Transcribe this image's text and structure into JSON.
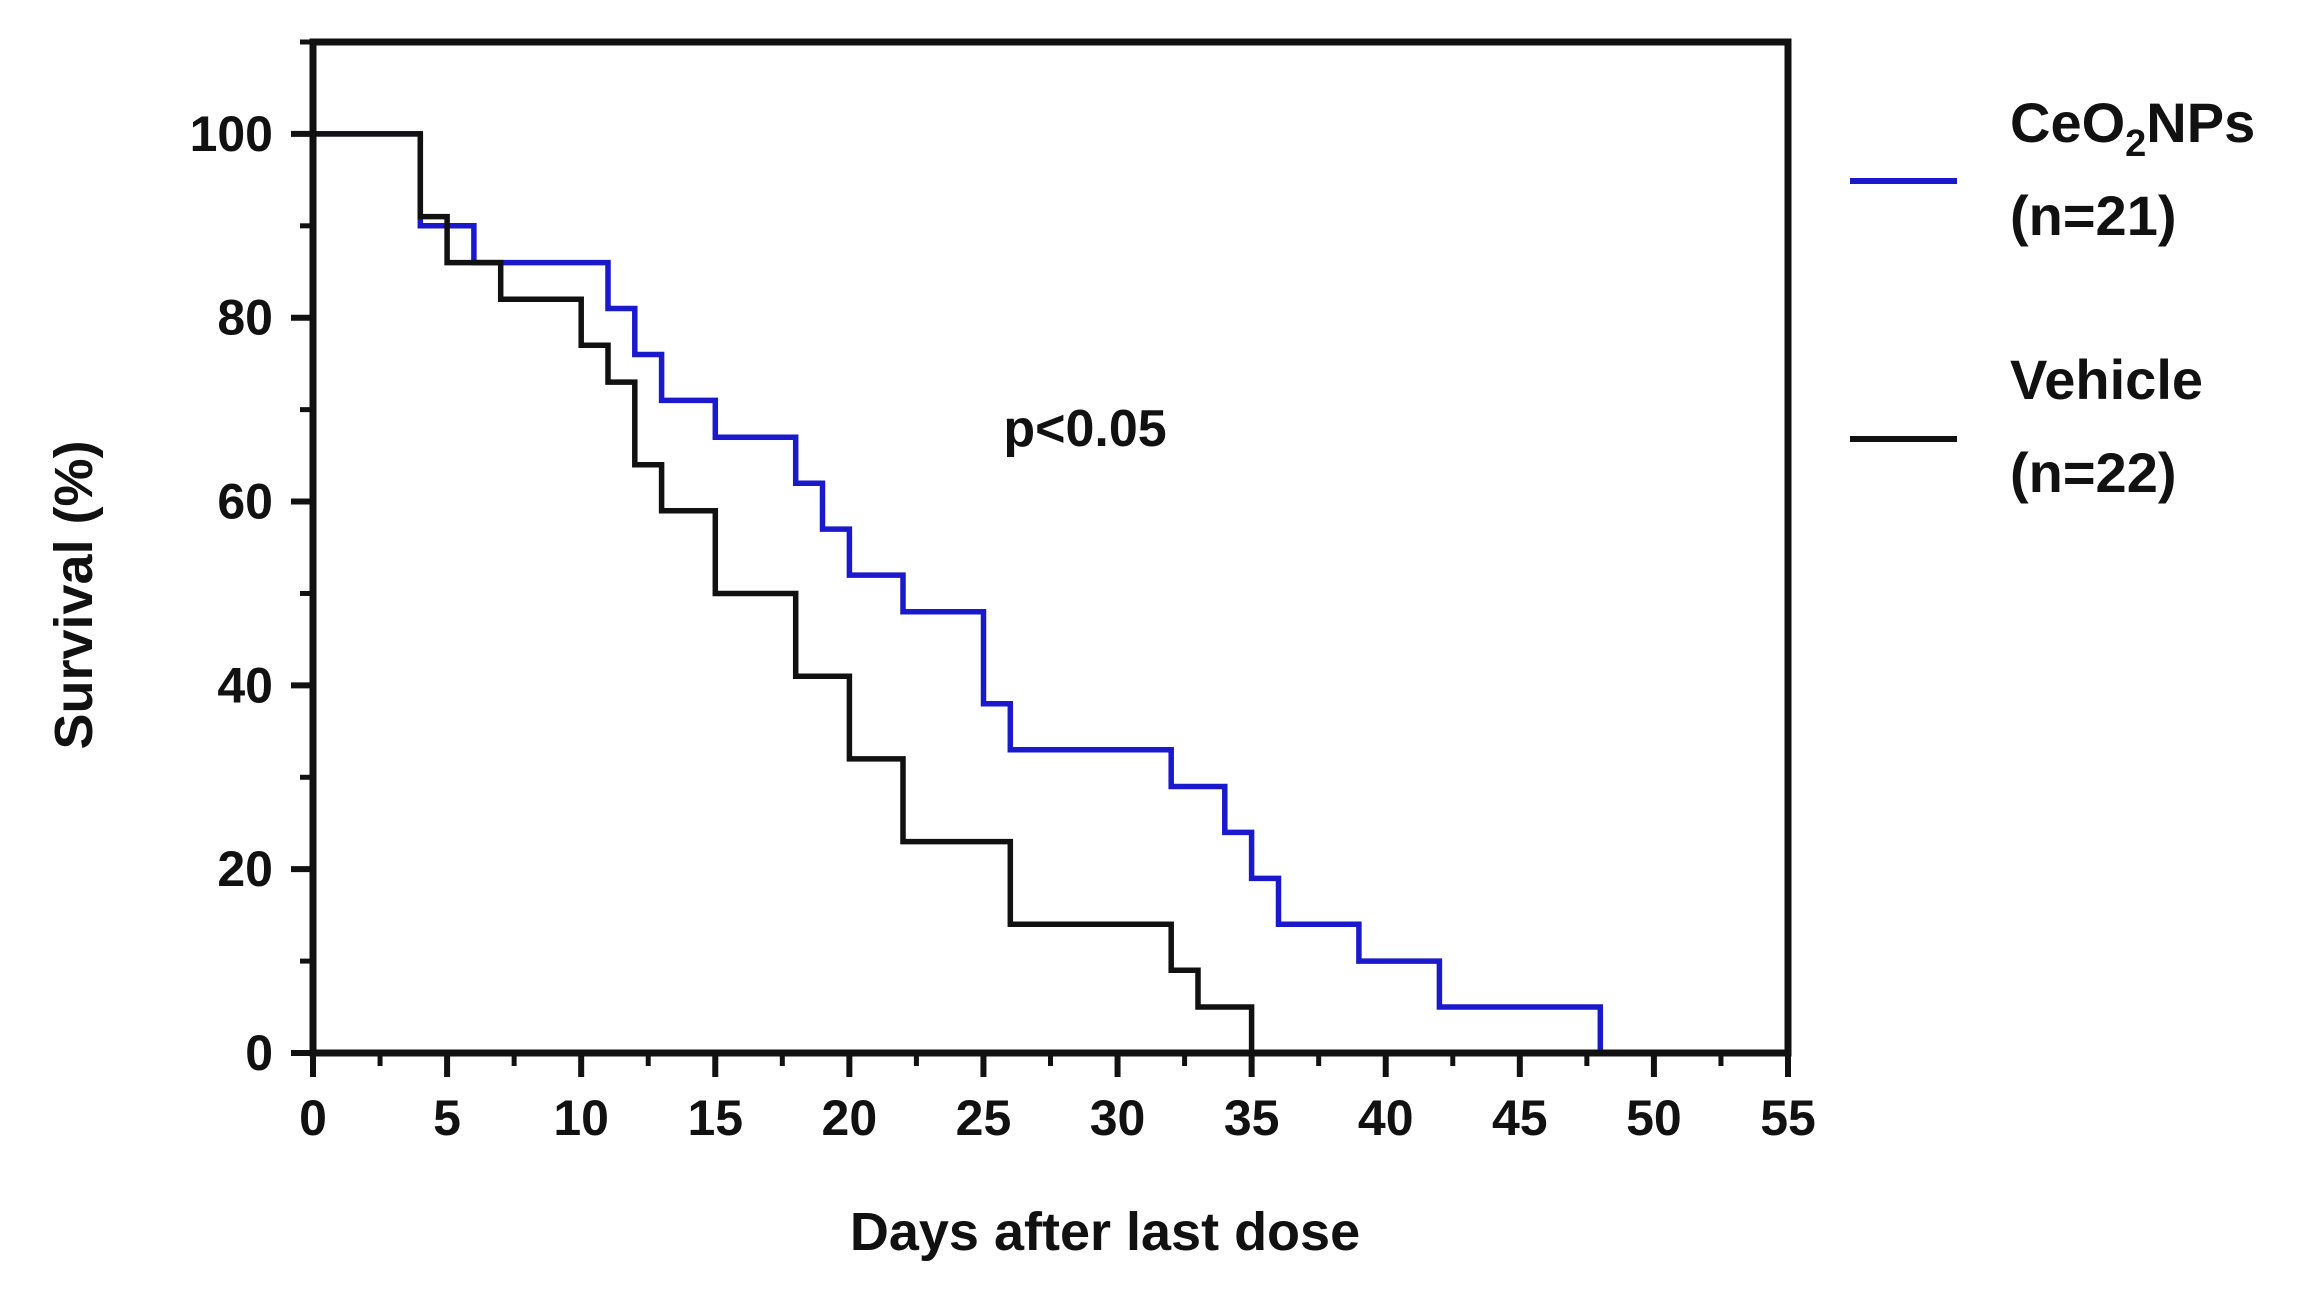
{
  "chart_data": {
    "type": "line",
    "subtype": "kaplan-meier-step",
    "title": "",
    "xlabel": "Days after last dose",
    "ylabel": "Survival (%)",
    "xlim": [
      0,
      55
    ],
    "ylim": [
      0,
      110
    ],
    "xticks": [
      "0",
      "5",
      "10",
      "15",
      "20",
      "25",
      "30",
      "35",
      "40",
      "45",
      "50",
      "55"
    ],
    "yticks": [
      "0",
      "20",
      "40",
      "60",
      "80",
      "100"
    ],
    "grid": false,
    "legend_position": "right",
    "annotation": "p<0.05",
    "series": [
      {
        "name": "CeO2NPs",
        "legend_main": "CeO",
        "legend_sub": "2",
        "legend_tail": "NPs",
        "legend_n": "(n=21)",
        "color": "#1a1acc",
        "x": [
          0,
          4,
          6,
          11,
          12,
          13,
          15,
          18,
          19,
          20,
          22,
          25,
          26,
          32,
          34,
          35,
          36,
          39,
          42,
          48
        ],
        "y": [
          100,
          90,
          86,
          81,
          76,
          71,
          67,
          62,
          57,
          52,
          48,
          38,
          33,
          29,
          24,
          19,
          14,
          10,
          5,
          0
        ]
      },
      {
        "name": "Vehicle",
        "legend_main": "Vehicle",
        "legend_sub": "",
        "legend_tail": "",
        "legend_n": "(n=22)",
        "color": "#111111",
        "x": [
          0,
          4,
          5,
          7,
          10,
          11,
          12,
          13,
          15,
          18,
          20,
          22,
          26,
          32,
          33,
          35
        ],
        "y": [
          100,
          91,
          86,
          82,
          77,
          73,
          64,
          59,
          50,
          41,
          32,
          23,
          14,
          9,
          5,
          0
        ]
      }
    ]
  }
}
